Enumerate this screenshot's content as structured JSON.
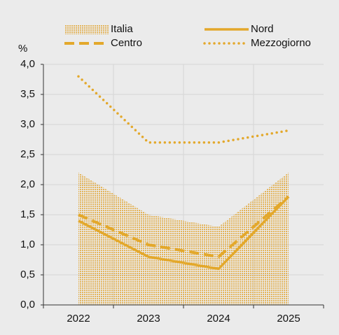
{
  "chart_data": {
    "type": "line",
    "y_label": "%",
    "categories": [
      "2022",
      "2023",
      "2024",
      "2025"
    ],
    "series": [
      {
        "name": "Italia",
        "kind": "area",
        "dash": "solid",
        "color": "#e3a82b",
        "values": [
          2.2,
          1.5,
          1.3,
          2.2
        ]
      },
      {
        "name": "Nord",
        "kind": "line",
        "dash": "solid",
        "color": "#e3a82b",
        "values": [
          1.4,
          0.8,
          0.6,
          1.8
        ]
      },
      {
        "name": "Centro",
        "kind": "line",
        "dash": "dashed",
        "color": "#e3a82b",
        "values": [
          1.5,
          1.0,
          0.8,
          1.8
        ]
      },
      {
        "name": "Mezzogiorno",
        "kind": "line",
        "dash": "dotted",
        "color": "#e3a82b",
        "values": [
          3.8,
          2.7,
          2.7,
          2.9
        ]
      }
    ],
    "ylim": [
      0,
      4
    ],
    "yticks": [
      {
        "value": 0,
        "label": "0,0"
      },
      {
        "value": 0.5,
        "label": "0,5"
      },
      {
        "value": 1,
        "label": "1,0"
      },
      {
        "value": 1.5,
        "label": "1,5"
      },
      {
        "value": 2,
        "label": "2,0"
      },
      {
        "value": 2.5,
        "label": "2,5"
      },
      {
        "value": 3,
        "label": "3,0"
      },
      {
        "value": 3.5,
        "label": "3,5"
      },
      {
        "value": 4,
        "label": "4,0"
      }
    ],
    "grid": true
  }
}
